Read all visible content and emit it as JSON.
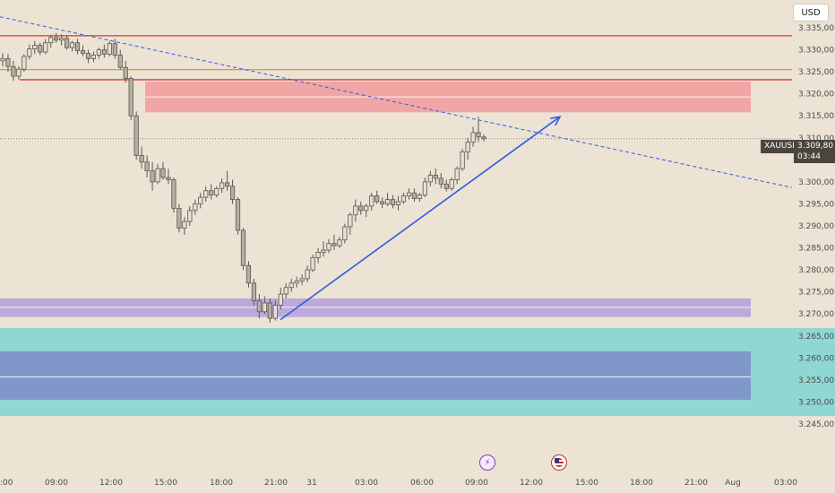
{
  "currency_button": "USD",
  "symbol_label": "XAUUSD",
  "price_label": {
    "price": "3.309,80",
    "countdown": "03:44"
  },
  "events": [
    {
      "icon": "lightning-icon",
      "time": "09:30"
    },
    {
      "icon": "us-flag-icon",
      "time": "13:30"
    }
  ],
  "colors": {
    "background": "#ece3d4",
    "candle_up": "#e6dfd2",
    "candle_down": "#b5aea3",
    "candle_outline": "#5c5650",
    "resistance_line": "#d43a35",
    "orange_line": "#e8951e",
    "supply_zone": "#f0a6a4",
    "demand_zone_purple": "#bda9d9",
    "demand_zone_cyan": "#8fd7d3",
    "demand_zone_blue": "#7f98c9",
    "trendline": "#2f5be0"
  },
  "chart_data": {
    "type": "candlestick",
    "symbol": "XAUUSD",
    "ylim": [
      3.243,
      3.338
    ],
    "y_ticks": [
      "3.335,00",
      "3.330,00",
      "3.325,00",
      "3.320,00",
      "3.315,00",
      "3.310,00",
      "3.305,00",
      "3.300,00",
      "3.295,00",
      "3.290,00",
      "3.285,00",
      "3.280,00",
      "3.275,00",
      "3.270,00",
      "3.265,00",
      "3.260,00",
      "3.255,00",
      "3.250,00",
      "3.245,00"
    ],
    "x_ticks": [
      "09:00",
      "12:00",
      "15:00",
      "18:00",
      "21:00",
      "31",
      "03:00",
      "06:00",
      "09:00",
      "12:00",
      "15:00",
      "18:00",
      "21:00",
      "Aug",
      "03:00"
    ],
    "x_ticks_left_partial": ":00",
    "last_price": 3.3098,
    "horizontal_lines": [
      {
        "price": 3.3332,
        "color": "red"
      },
      {
        "price": 3.3255,
        "color": "orange"
      },
      {
        "price": 3.3232,
        "color": "red"
      }
    ],
    "zones": [
      {
        "from": 3.3158,
        "to": 3.3228,
        "color": "red",
        "midline": 3.3193
      },
      {
        "from": 3.2693,
        "to": 3.2735,
        "color": "purple",
        "midline": 3.2715
      },
      {
        "from": 3.2468,
        "to": 3.2668,
        "color": "cyan"
      },
      {
        "from": 3.2505,
        "to": 3.2615,
        "color": "blue",
        "midline": 3.2557
      }
    ],
    "dashed_trendline": {
      "from_price": 3.3375,
      "to_price": 3.2987
    },
    "projection_arrow": {
      "from_price": 3.2687,
      "to_price": 3.3148
    },
    "candles": [
      [
        3.3275,
        3.3292,
        3.3262,
        3.328
      ],
      [
        3.328,
        3.329,
        3.325,
        3.3262
      ],
      [
        3.3262,
        3.3275,
        3.323,
        3.324
      ],
      [
        3.324,
        3.3262,
        3.3232,
        3.3256
      ],
      [
        3.3256,
        3.329,
        3.325,
        3.3285
      ],
      [
        3.3285,
        3.3312,
        3.3278,
        3.3302
      ],
      [
        3.3302,
        3.332,
        3.329,
        3.331
      ],
      [
        3.331,
        3.3316,
        3.3288,
        3.3295
      ],
      [
        3.3295,
        3.3324,
        3.329,
        3.3316
      ],
      [
        3.3316,
        3.3334,
        3.3305,
        3.3328
      ],
      [
        3.3328,
        3.3338,
        3.3316,
        3.3322
      ],
      [
        3.3322,
        3.3335,
        3.331,
        3.3326
      ],
      [
        3.3326,
        3.3333,
        3.33,
        3.3305
      ],
      [
        3.3305,
        3.332,
        3.3296,
        3.3316
      ],
      [
        3.3316,
        3.3325,
        3.329,
        3.3298
      ],
      [
        3.3298,
        3.331,
        3.3285,
        3.3292
      ],
      [
        3.3292,
        3.33,
        3.327,
        3.328
      ],
      [
        3.328,
        3.3296,
        3.3272,
        3.3288
      ],
      [
        3.3288,
        3.3305,
        3.328,
        3.33
      ],
      [
        3.33,
        3.3312,
        3.3282,
        3.329
      ],
      [
        3.329,
        3.332,
        3.3285,
        3.3314
      ],
      [
        3.3314,
        3.3325,
        3.328,
        3.3288
      ],
      [
        3.3288,
        3.33,
        3.3255,
        3.326
      ],
      [
        3.326,
        3.3275,
        3.3225,
        3.3235
      ],
      [
        3.3235,
        3.324,
        3.314,
        3.315
      ],
      [
        3.315,
        3.316,
        3.305,
        3.306
      ],
      [
        3.306,
        3.308,
        3.303,
        3.3045
      ],
      [
        3.3045,
        3.306,
        3.301,
        3.3025
      ],
      [
        3.3025,
        3.3045,
        3.298,
        3.3
      ],
      [
        3.3,
        3.304,
        3.2995,
        3.303
      ],
      [
        3.303,
        3.3045,
        3.3005,
        3.301
      ],
      [
        3.301,
        3.303,
        3.2995,
        3.3005
      ],
      [
        3.3005,
        3.301,
        3.293,
        3.294
      ],
      [
        3.294,
        3.295,
        3.2885,
        3.2895
      ],
      [
        3.2895,
        3.292,
        3.288,
        3.291
      ],
      [
        3.291,
        3.2945,
        3.29,
        3.2935
      ],
      [
        3.2935,
        3.296,
        3.2925,
        3.295
      ],
      [
        3.295,
        3.2975,
        3.294,
        3.2965
      ],
      [
        3.2965,
        3.299,
        3.2955,
        3.298
      ],
      [
        3.298,
        3.2995,
        3.296,
        3.297
      ],
      [
        3.297,
        3.299,
        3.2965,
        3.2985
      ],
      [
        3.2985,
        3.3008,
        3.2975,
        3.2998
      ],
      [
        3.2998,
        3.3025,
        3.298,
        3.299
      ],
      [
        3.299,
        3.3005,
        3.295,
        3.296
      ],
      [
        3.296,
        3.2965,
        3.288,
        3.289
      ],
      [
        3.289,
        3.2895,
        3.28,
        3.281
      ],
      [
        3.281,
        3.282,
        3.276,
        3.277
      ],
      [
        3.277,
        3.278,
        3.272,
        3.273
      ],
      [
        3.273,
        3.2745,
        3.269,
        3.2705
      ],
      [
        3.2705,
        3.274,
        3.27,
        3.2725
      ],
      [
        3.2725,
        3.2735,
        3.268,
        3.269
      ],
      [
        3.269,
        3.273,
        3.2685,
        3.272
      ],
      [
        3.272,
        3.276,
        3.271,
        3.2745
      ],
      [
        3.2745,
        3.277,
        3.2735,
        3.276
      ],
      [
        3.276,
        3.278,
        3.275,
        3.277
      ],
      [
        3.277,
        3.2785,
        3.276,
        3.2775
      ],
      [
        3.2775,
        3.279,
        3.2765,
        3.278
      ],
      [
        3.278,
        3.281,
        3.2772,
        3.28
      ],
      [
        3.28,
        3.2835,
        3.2795,
        3.2828
      ],
      [
        3.2828,
        3.285,
        3.2815,
        3.284
      ],
      [
        3.284,
        3.2865,
        3.283,
        3.2845
      ],
      [
        3.2845,
        3.287,
        3.2838,
        3.286
      ],
      [
        3.286,
        3.288,
        3.2845,
        3.2855
      ],
      [
        3.2855,
        3.2875,
        3.285,
        3.2868
      ],
      [
        3.2868,
        3.2905,
        3.286,
        3.2898
      ],
      [
        3.2898,
        3.293,
        3.288,
        3.2925
      ],
      [
        3.2925,
        3.296,
        3.291,
        3.2945
      ],
      [
        3.2945,
        3.2955,
        3.2925,
        3.2935
      ],
      [
        3.2935,
        3.295,
        3.292,
        3.2945
      ],
      [
        3.2945,
        3.2975,
        3.2935,
        3.2968
      ],
      [
        3.2968,
        3.298,
        3.295,
        3.2955
      ],
      [
        3.2955,
        3.2965,
        3.294,
        3.295
      ],
      [
        3.295,
        3.2975,
        3.2945,
        3.296
      ],
      [
        3.296,
        3.297,
        3.294,
        3.2948
      ],
      [
        3.2948,
        3.2968,
        3.2935,
        3.2955
      ],
      [
        3.2955,
        3.2975,
        3.295,
        3.2968
      ],
      [
        3.2968,
        3.2985,
        3.296,
        3.2975
      ],
      [
        3.2975,
        3.2985,
        3.2955,
        3.2962
      ],
      [
        3.2962,
        3.2975,
        3.2955,
        3.297
      ],
      [
        3.297,
        3.301,
        3.2965,
        3.3
      ],
      [
        3.3,
        3.3025,
        3.299,
        3.3015
      ],
      [
        3.3015,
        3.303,
        3.2995,
        3.3008
      ],
      [
        3.3008,
        3.302,
        3.2985,
        3.2995
      ],
      [
        3.2995,
        3.3005,
        3.2978,
        3.2985
      ],
      [
        3.2985,
        3.301,
        3.298,
        3.3005
      ],
      [
        3.3005,
        3.3035,
        3.2995,
        3.303
      ],
      [
        3.303,
        3.3075,
        3.3025,
        3.3068
      ],
      [
        3.3068,
        3.31,
        3.305,
        3.309
      ],
      [
        3.309,
        3.3125,
        3.308,
        3.3112
      ],
      [
        3.3112,
        3.3148,
        3.309,
        3.3102
      ],
      [
        3.3102,
        3.3108,
        3.3092,
        3.3098
      ]
    ]
  }
}
